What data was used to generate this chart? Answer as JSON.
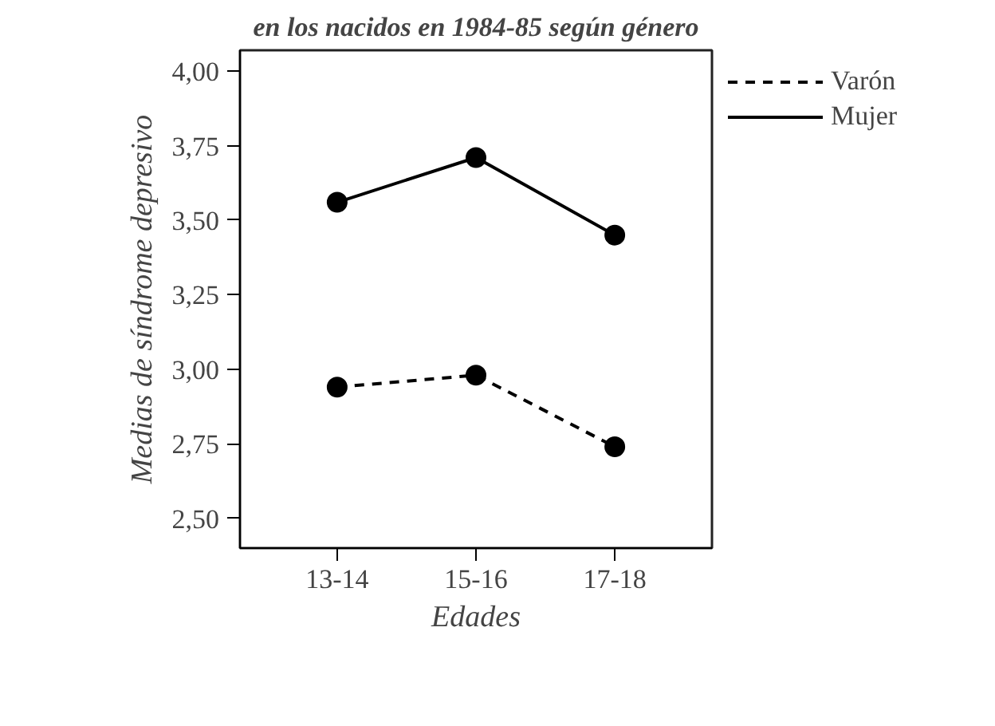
{
  "chart_data": {
    "type": "line",
    "title": "en los nacidos en 1984-85 según género",
    "xlabel": "Edades",
    "ylabel": "Medias de síndrome depresivo",
    "categories": [
      "13-14",
      "15-16",
      "17-18"
    ],
    "series": [
      {
        "name": "Varón",
        "color": "#000000",
        "values": [
          2.94,
          2.98,
          2.74
        ],
        "line_style": "dashed"
      },
      {
        "name": "Mujer",
        "color": "#000000",
        "values": [
          3.56,
          3.71,
          3.45
        ],
        "line_style": "solid"
      }
    ],
    "ylim": [
      2.4,
      4.07
    ],
    "yticks": [
      {
        "value": 2.5,
        "label": "2,50"
      },
      {
        "value": 2.75,
        "label": "2,75"
      },
      {
        "value": 3.0,
        "label": "3,00"
      },
      {
        "value": 3.25,
        "label": "3,25"
      },
      {
        "value": 3.5,
        "label": "3,50"
      },
      {
        "value": 3.75,
        "label": "3,75"
      },
      {
        "value": 4.0,
        "label": "4,00"
      }
    ],
    "marker": "circle",
    "grid": false,
    "legend": "top right"
  }
}
